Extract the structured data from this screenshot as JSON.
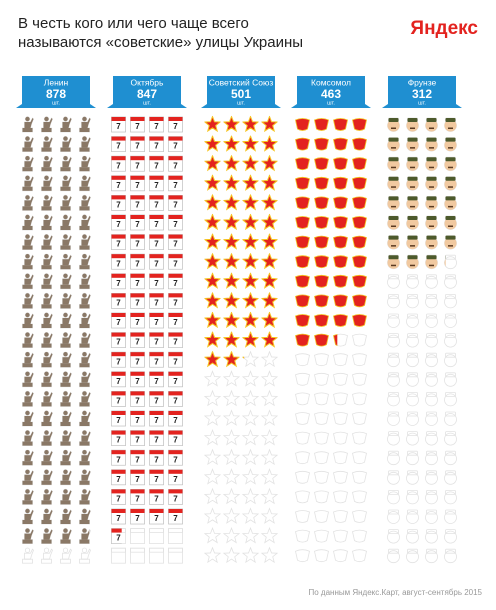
{
  "chart_data": {
    "type": "pictogram",
    "title": "В честь кого или чего чаще всего называются «советские» улицы Украины",
    "brand": "Яндекс",
    "source": "По данным Яндекс.Карт, август-сентябрь 2015",
    "categories": [
      "Ленин",
      "Октябрь",
      "Советский Союз",
      "Комсомол",
      "Фрунзе"
    ],
    "values": [
      878,
      847,
      501,
      463,
      312
    ],
    "unit": "шт.",
    "icon_text": "7",
    "colors": [
      "#8a7866",
      "#e3231f",
      "#e3231f",
      "#e3231f",
      "#f1c9a0"
    ],
    "ylim": [
      0,
      920
    ]
  }
}
